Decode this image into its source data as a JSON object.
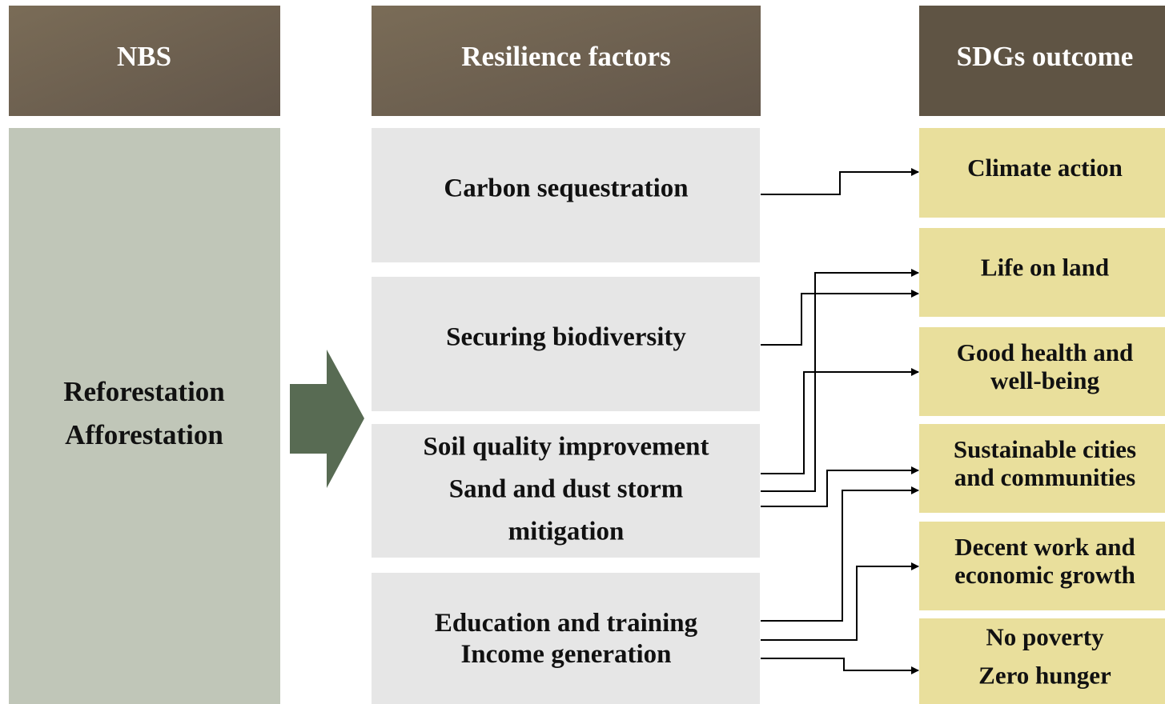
{
  "headers": [
    "NBS",
    "Resilience factors",
    "SDGs outcome"
  ],
  "nbs": {
    "lines": [
      "Reforestation",
      "Afforestation"
    ]
  },
  "factors": [
    {
      "lines": [
        "Carbon sequestration"
      ]
    },
    {
      "lines": [
        "Securing biodiversity"
      ]
    },
    {
      "lines": [
        "Soil quality improvement",
        "Sand and dust storm",
        "mitigation"
      ]
    },
    {
      "lines": [
        "Education and training",
        "Income generation"
      ]
    }
  ],
  "outcomes": [
    {
      "lines": [
        "Climate action"
      ]
    },
    {
      "lines": [
        "Life on land"
      ]
    },
    {
      "lines": [
        "Good health and",
        "well-being"
      ]
    },
    {
      "lines": [
        "Sustainable cities",
        "and communities"
      ]
    },
    {
      "lines": [
        "Decent work and",
        "economic growth"
      ]
    },
    {
      "lines": [
        "No poverty",
        "Zero hunger"
      ]
    }
  ]
}
